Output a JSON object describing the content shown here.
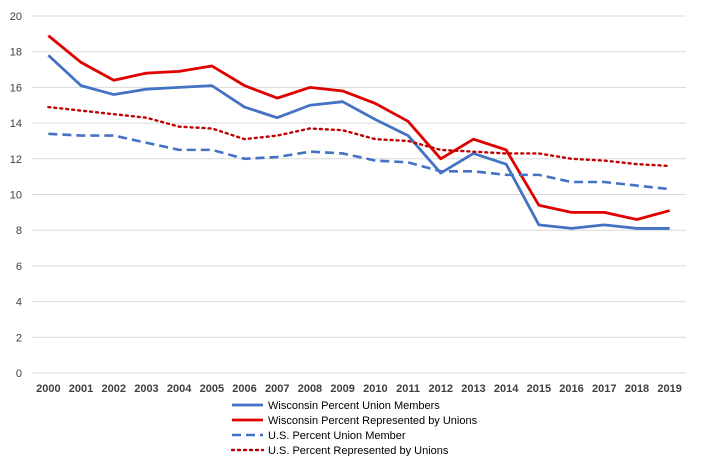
{
  "chart_data": {
    "type": "line",
    "title": "",
    "xlabel": "",
    "ylabel": "",
    "x": [
      2000,
      2001,
      2002,
      2003,
      2004,
      2005,
      2006,
      2007,
      2008,
      2009,
      2010,
      2011,
      2012,
      2013,
      2014,
      2015,
      2016,
      2017,
      2018,
      2019
    ],
    "ylim": [
      0,
      20
    ],
    "yticks": [
      0,
      2,
      4,
      6,
      8,
      10,
      12,
      14,
      16,
      18,
      20
    ],
    "grid": true,
    "legend_position": "bottom",
    "series": [
      {
        "name": "Wisconsin Percent Union Members",
        "color": "#4472c4",
        "style": "solid",
        "values": [
          17.8,
          16.1,
          15.6,
          15.9,
          16.0,
          16.1,
          14.9,
          14.3,
          15.0,
          15.2,
          14.2,
          13.3,
          11.2,
          12.3,
          11.7,
          8.3,
          8.1,
          8.3,
          8.1,
          8.1
        ]
      },
      {
        "name": "Wisconsin Percent Represented by Unions",
        "color": "#e00000",
        "style": "solid",
        "values": [
          18.9,
          17.4,
          16.4,
          16.8,
          16.9,
          17.2,
          16.1,
          15.4,
          16.0,
          15.8,
          15.1,
          14.1,
          12.0,
          13.1,
          12.5,
          9.4,
          9.0,
          9.0,
          8.6,
          9.1
        ]
      },
      {
        "name": "U.S. Percent Union Member",
        "color": "#4472c4",
        "style": "dashed",
        "values": [
          13.4,
          13.3,
          13.3,
          12.9,
          12.5,
          12.5,
          12.0,
          12.1,
          12.4,
          12.3,
          11.9,
          11.8,
          11.3,
          11.3,
          11.1,
          11.1,
          10.7,
          10.7,
          10.5,
          10.3
        ]
      },
      {
        "name": "U.S. Percent Represented by Unions",
        "color": "#c00000",
        "style": "dotted",
        "values": [
          14.9,
          14.7,
          14.5,
          14.3,
          13.8,
          13.7,
          13.1,
          13.3,
          13.7,
          13.6,
          13.1,
          13.0,
          12.5,
          12.4,
          12.3,
          12.3,
          12.0,
          11.9,
          11.7,
          11.6
        ]
      }
    ]
  }
}
